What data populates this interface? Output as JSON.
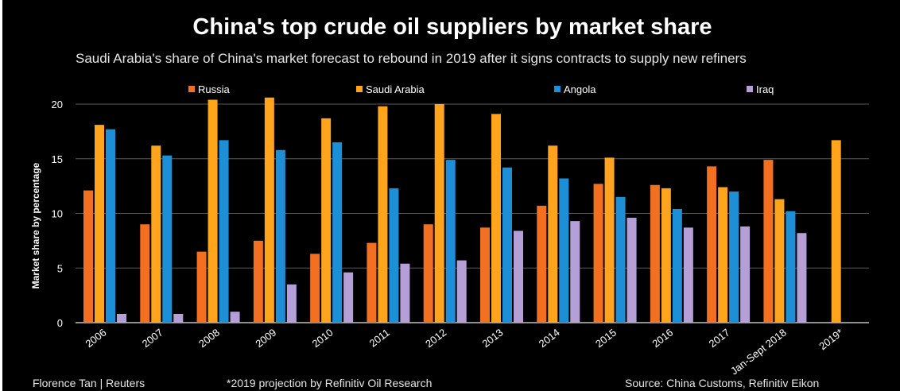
{
  "title": "China's top crude oil suppliers by market share",
  "subtitle": "Saudi Arabia's share of China's market forecast to rebound in 2019 after it signs contracts to supply new refiners",
  "footer": {
    "credit": "Florence Tan | Reuters",
    "note": "*2019 projection by Refinitiv Oil Research",
    "source": "Source: China Customs, Refinitiv Eikon"
  },
  "chart_data": {
    "type": "bar",
    "title": "China's top crude oil suppliers by market share",
    "xlabel": "",
    "ylabel": "Market share by percentage",
    "ylim": [
      0,
      21
    ],
    "yticks": [
      0,
      5,
      10,
      15,
      20
    ],
    "grid": true,
    "legend_position": "top",
    "categories": [
      "2006",
      "2007",
      "2008",
      "2009",
      "2010",
      "2011",
      "2012",
      "2013",
      "2014",
      "2015",
      "2016",
      "2017",
      "Jan-Sept 2018",
      "2019*"
    ],
    "series": [
      {
        "name": "Russia",
        "color": "#f36f21",
        "values": [
          12.1,
          9.0,
          6.5,
          7.5,
          6.3,
          7.3,
          9.0,
          8.7,
          10.7,
          12.7,
          12.6,
          14.3,
          14.9,
          null
        ]
      },
      {
        "name": "Saudi Arabia",
        "color": "#ffa41c",
        "values": [
          18.1,
          16.2,
          20.4,
          20.6,
          18.7,
          19.8,
          20.0,
          19.1,
          16.2,
          15.1,
          12.3,
          12.4,
          11.3,
          16.7
        ]
      },
      {
        "name": "Angola",
        "color": "#1c8fd6",
        "values": [
          17.7,
          15.3,
          16.7,
          15.8,
          16.5,
          12.3,
          14.9,
          14.2,
          13.2,
          11.5,
          10.4,
          12.0,
          10.2,
          null
        ]
      },
      {
        "name": "Iraq",
        "color": "#b49fd6",
        "values": [
          0.8,
          0.8,
          1.0,
          3.5,
          4.6,
          5.4,
          5.7,
          8.4,
          9.3,
          9.6,
          8.7,
          8.8,
          8.2,
          null
        ]
      }
    ]
  }
}
